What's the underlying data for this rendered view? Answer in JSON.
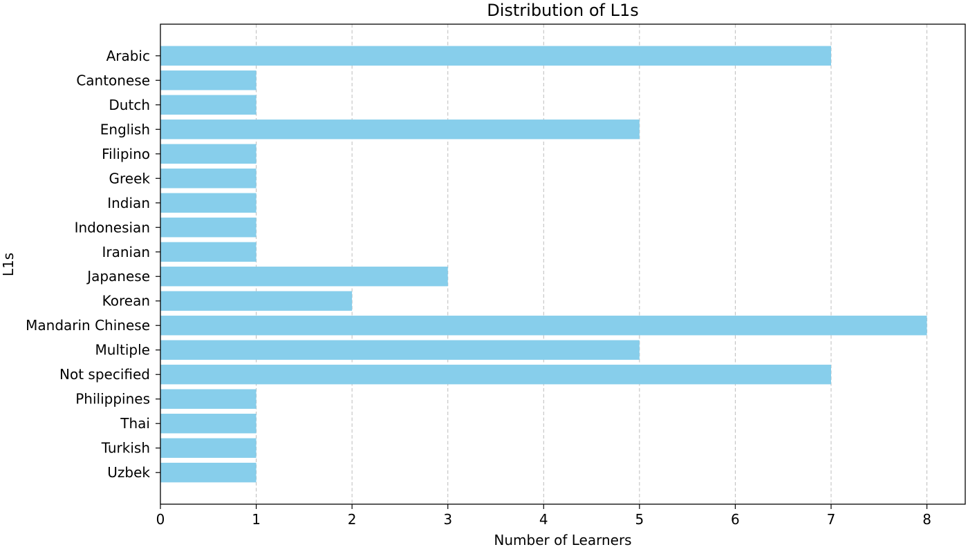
{
  "chart_data": {
    "type": "bar",
    "orientation": "horizontal",
    "title": "Distribution of L1s",
    "xlabel": "Number of Learners",
    "ylabel": "L1s",
    "categories": [
      "Arabic",
      "Cantonese",
      "Dutch",
      "English",
      "Filipino",
      "Greek",
      "Indian",
      "Indonesian",
      "Iranian",
      "Japanese",
      "Korean",
      "Mandarin Chinese",
      "Multiple",
      "Not specified",
      "Philippines",
      "Thai",
      "Turkish",
      "Uzbek"
    ],
    "values": [
      7,
      1,
      1,
      5,
      1,
      1,
      1,
      1,
      1,
      3,
      2,
      8,
      5,
      7,
      1,
      1,
      1,
      1
    ],
    "xlim": [
      0,
      8.4
    ],
    "xticks": [
      0,
      1,
      2,
      3,
      4,
      5,
      6,
      7,
      8
    ],
    "category_order": "top-to-bottom",
    "grid": true,
    "grid_axis": "x",
    "grid_style": "dashed",
    "legend": false
  },
  "colors": {
    "bar": "#87CEEB",
    "axis": "#000000",
    "grid": "#b0b0b0",
    "background": "#ffffff"
  }
}
